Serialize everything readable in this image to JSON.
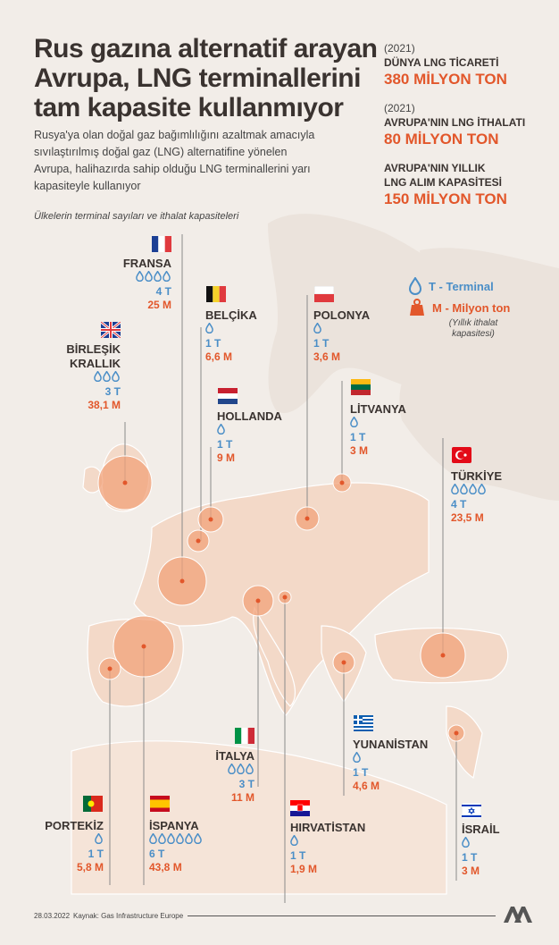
{
  "title": {
    "line1": "Rus gazına alternatif arayan",
    "line2": "Avrupa, LNG terminallerini",
    "line3": "tam kapasite kullanmıyor"
  },
  "description": {
    "line1": "Rusya'ya olan doğal gaz bağımlılığını azaltmak amacıyla",
    "line2": "sıvılaştırılmış doğal gaz (LNG) alternatifine yönelen",
    "line3": "Avrupa, halihazırda sahip olduğu LNG terminallerini yarı",
    "line4": "kapasiteyle kullanıyor"
  },
  "subtitle": "Ülkelerin terminal sayıları ve ithalat kapasiteleri",
  "stats": {
    "world": {
      "year": "(2021)",
      "label": "DÜNYA LNG TİCARETİ",
      "value": "380 MİLYON TON"
    },
    "europe_import": {
      "year": "(2021)",
      "label": "AVRUPA'NIN LNG İTHALATI",
      "value": "80 MİLYON TON"
    },
    "europe_capacity": {
      "label1": "AVRUPA'NIN YILLIK",
      "label2": "LNG ALIM KAPASİTESİ",
      "value": "150 MİLYON TON"
    }
  },
  "legend": {
    "terminal": "T - Terminal",
    "million_ton": "M - Milyon ton",
    "note1": "(Yıllık ithalat",
    "note2": "kapasitesi)",
    "terminal_icon": "flame-drop-icon",
    "weight_icon": "weight-icon"
  },
  "countries": {
    "fransa": {
      "name": "FRANSA",
      "drops": "💧💧💧💧",
      "terminals": "4 T",
      "capacity": "25 M"
    },
    "belcika": {
      "name": "BELÇİKA",
      "drops": "💧",
      "terminals": "1 T",
      "capacity": "6,6 M"
    },
    "polonya": {
      "name": "POLONYA",
      "drops": "💧",
      "terminals": "1 T",
      "capacity": "3,6 M"
    },
    "birlesik_krallik": {
      "name1": "BİRLEŞİK",
      "name2": "KRALLIK",
      "drops": "💧💧💧",
      "terminals": "3 T",
      "capacity": "38,1 M"
    },
    "hollanda": {
      "name": "HOLLANDA",
      "drops": "💧",
      "terminals": "1 T",
      "capacity": "9 M"
    },
    "litvanya": {
      "name": "LİTVANYA",
      "drops": "💧",
      "terminals": "1 T",
      "capacity": "3 M"
    },
    "turkiye": {
      "name": "TÜRKİYE",
      "drops": "💧💧💧💧",
      "terminals": "4 T",
      "capacity": "23,5 M"
    },
    "yunanistan": {
      "name": "YUNANİSTAN",
      "drops": "💧",
      "terminals": "1 T",
      "capacity": "4,6 M"
    },
    "italya": {
      "name": "İTALYA",
      "drops": "💧💧💧",
      "terminals": "3 T",
      "capacity": "11 M"
    },
    "portekiz": {
      "name": "PORTEKİZ",
      "drops": "💧",
      "terminals": "1 T",
      "capacity": "5,8 M"
    },
    "ispanya": {
      "name": "İSPANYA",
      "drops": "💧💧💧💧💧💧",
      "terminals": "6 T",
      "capacity": "43,8 M"
    },
    "hirvatistan": {
      "name": "HIRVATİSTAN",
      "drops": "💧",
      "terminals": "1 T",
      "capacity": "1,9 M"
    },
    "israil": {
      "name": "İSRAİL",
      "drops": "💧",
      "terminals": "1 T",
      "capacity": "3 M"
    }
  },
  "footer": {
    "date": "28.03.2022",
    "source": "Kaynak: Gas Infrastructure Europe"
  },
  "colors": {
    "accent_orange": "#e2572b",
    "accent_blue": "#4a8ec7",
    "bubble_fill": "#f2a27a",
    "land": "#f3d9c8",
    "background": "#f2ede8"
  }
}
